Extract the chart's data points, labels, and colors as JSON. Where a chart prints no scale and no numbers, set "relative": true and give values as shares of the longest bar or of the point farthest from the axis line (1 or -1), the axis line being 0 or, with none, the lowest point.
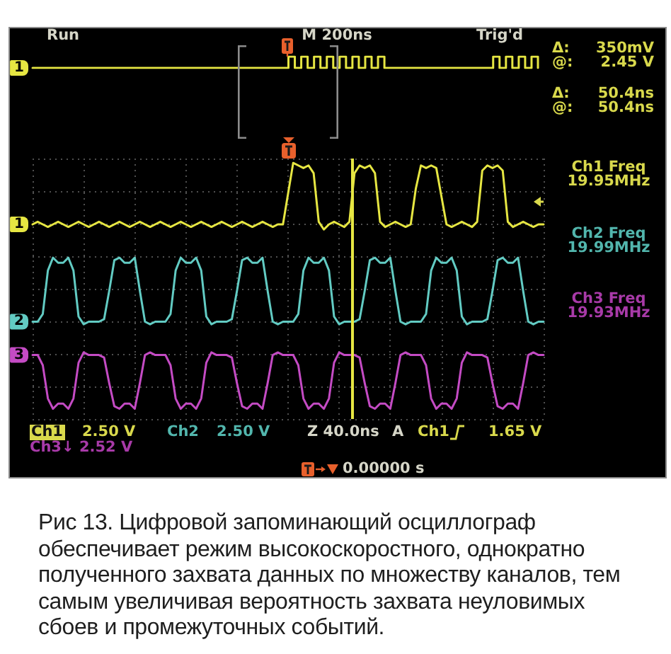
{
  "chart_data": [
    {
      "type": "step",
      "relative": true,
      "categories": [
        null,
        null,
        null,
        null,
        null,
        null,
        null,
        null,
        null,
        null,
        null,
        null,
        null,
        null,
        null,
        null,
        null,
        null,
        null,
        null,
        null,
        null,
        null,
        null,
        null,
        null,
        null,
        null,
        null,
        null,
        null,
        null,
        null,
        null,
        null,
        null,
        null,
        null,
        null,
        null,
        null,
        null,
        null,
        null,
        null,
        null,
        null,
        null,
        null,
        null,
        null,
        null,
        null,
        null,
        null,
        null,
        null,
        null,
        null,
        null,
        null,
        null,
        null,
        null,
        null,
        null,
        null,
        null,
        null,
        null,
        null,
        null,
        null,
        null,
        null,
        null,
        null,
        null,
        null,
        null
      ],
      "series": [
        {
          "name": "1",
          "color": "#e6e642",
          "values": [
            0,
            0,
            0,
            0,
            0,
            0,
            0,
            0,
            0,
            0,
            0,
            0,
            0,
            0,
            0,
            0,
            0,
            0,
            0,
            0,
            0,
            0,
            0,
            0,
            0,
            0,
            0,
            0,
            0,
            0,
            0,
            0,
            0,
            0,
            0,
            0,
            0,
            0,
            0,
            0,
            1,
            0,
            1,
            0,
            1,
            0,
            1,
            0,
            1,
            0,
            1,
            0,
            1,
            0,
            1,
            0,
            0,
            0,
            0,
            0,
            0,
            0,
            0,
            0,
            0,
            0,
            0,
            0,
            0,
            0,
            0,
            0,
            1,
            0,
            1,
            0,
            1,
            0,
            1,
            0
          ]
        }
      ],
      "marker": "none",
      "annotations": [
        "Run",
        "M 200ns",
        "Trig'd"
      ]
    },
    {
      "type": "line",
      "relative": true,
      "categories": [
        null,
        null,
        null,
        null,
        null,
        null,
        null,
        null,
        null,
        null,
        null,
        null,
        null,
        null,
        null,
        null,
        null,
        null,
        null,
        null,
        null,
        null,
        null,
        null,
        null,
        null,
        null,
        null,
        null,
        null,
        null,
        null,
        null,
        null,
        null,
        null,
        null,
        null,
        null,
        null,
        null,
        null,
        null,
        null,
        null,
        null,
        null,
        null,
        null,
        null,
        null,
        null,
        null,
        null,
        null,
        null,
        null,
        null,
        null,
        null,
        null,
        null,
        null,
        null,
        null,
        null,
        null,
        null,
        null,
        null,
        null,
        null,
        null,
        null,
        null,
        null,
        null,
        null,
        null,
        null,
        null,
        null,
        null,
        null,
        null,
        null,
        null,
        null,
        null,
        null,
        null,
        null,
        null,
        null,
        null,
        null,
        null,
        null,
        null,
        null,
        null
      ],
      "series": [
        {
          "name": "1",
          "color": "#e6e642",
          "values": [
            0.76,
            0.77,
            0.76,
            0.75,
            0.76,
            0.77,
            0.76,
            0.75,
            0.76,
            0.77,
            0.76,
            0.75,
            0.76,
            0.77,
            0.76,
            0.75,
            0.76,
            0.77,
            0.76,
            0.75,
            0.76,
            0.77,
            0.76,
            0.75,
            0.76,
            0.77,
            0.76,
            0.75,
            0.76,
            0.77,
            0.76,
            0.75,
            0.76,
            0.77,
            0.76,
            0.75,
            0.76,
            0.77,
            0.76,
            0.75,
            0.76,
            0.77,
            0.76,
            0.75,
            0.76,
            0.77,
            0.76,
            0.75,
            0.76,
            0.76,
            0.88,
            1,
            0.99,
            0.98,
            0.99,
            0.96,
            0.77,
            0.74,
            0.76,
            0.77,
            0.76,
            0.75,
            0.77,
            0.96,
            0.99,
            0.98,
            0.99,
            0.96,
            0.77,
            0.75,
            0.76,
            0.77,
            0.76,
            0.75,
            0.76,
            0.9,
            0.99,
            0.98,
            0.99,
            0.98,
            0.87,
            0.76,
            0.75,
            0.76,
            0.77,
            0.76,
            0.75,
            0.77,
            0.97,
            0.99,
            0.98,
            0.99,
            0.97,
            0.77,
            0.75,
            0.76,
            0.77,
            0.76,
            0.75,
            0.76,
            0.76
          ]
        },
        {
          "name": "2",
          "color": "#62cbc3",
          "values": [
            0.38,
            0.38,
            0.41,
            0.58,
            0.63,
            0.61,
            0.61,
            0.63,
            0.58,
            0.4,
            0.37,
            0.38,
            0.38,
            0.38,
            0.39,
            0.5,
            0.62,
            0.63,
            0.61,
            0.61,
            0.63,
            0.5,
            0.38,
            0.37,
            0.38,
            0.38,
            0.38,
            0.41,
            0.58,
            0.63,
            0.61,
            0.61,
            0.63,
            0.58,
            0.4,
            0.37,
            0.38,
            0.38,
            0.38,
            0.39,
            0.5,
            0.62,
            0.63,
            0.61,
            0.61,
            0.63,
            0.5,
            0.38,
            0.37,
            0.38,
            0.38,
            0.38,
            0.41,
            0.58,
            0.63,
            0.61,
            0.61,
            0.63,
            0.58,
            0.4,
            0.37,
            0.38,
            0.38,
            0.38,
            0.39,
            0.5,
            0.62,
            0.63,
            0.61,
            0.61,
            0.63,
            0.5,
            0.38,
            0.37,
            0.38,
            0.38,
            0.38,
            0.41,
            0.58,
            0.63,
            0.61,
            0.61,
            0.63,
            0.58,
            0.4,
            0.37,
            0.38,
            0.38,
            0.38,
            0.39,
            0.5,
            0.62,
            0.63,
            0.61,
            0.61,
            0.63,
            0.5,
            0.38,
            0.37,
            0.38,
            0.38
          ]
        },
        {
          "name": "3",
          "color": "#c44bc4",
          "values": [
            0.25,
            0.25,
            0.21,
            0.08,
            0.04,
            0.06,
            0.06,
            0.04,
            0.08,
            0.22,
            0.26,
            0.25,
            0.25,
            0.25,
            0.24,
            0.14,
            0.05,
            0.04,
            0.06,
            0.06,
            0.04,
            0.14,
            0.25,
            0.26,
            0.25,
            0.25,
            0.25,
            0.21,
            0.08,
            0.04,
            0.06,
            0.06,
            0.04,
            0.08,
            0.22,
            0.26,
            0.25,
            0.25,
            0.25,
            0.24,
            0.14,
            0.05,
            0.04,
            0.06,
            0.06,
            0.04,
            0.14,
            0.25,
            0.26,
            0.25,
            0.25,
            0.25,
            0.21,
            0.08,
            0.04,
            0.06,
            0.06,
            0.04,
            0.08,
            0.22,
            0.26,
            0.25,
            0.25,
            0.25,
            0.24,
            0.14,
            0.05,
            0.04,
            0.06,
            0.06,
            0.04,
            0.14,
            0.25,
            0.26,
            0.25,
            0.25,
            0.25,
            0.21,
            0.08,
            0.04,
            0.06,
            0.06,
            0.04,
            0.08,
            0.22,
            0.26,
            0.25,
            0.25,
            0.25,
            0.24,
            0.14,
            0.05,
            0.04,
            0.06,
            0.06,
            0.04,
            0.14,
            0.25,
            0.26,
            0.25,
            0.25
          ]
        }
      ],
      "marker": "none",
      "grid": true,
      "annotations": [
        "Δ:",
        "350mV",
        "@:",
        "2.45 V",
        "Δ:",
        "50.4ns",
        "@:",
        "50.4ns",
        "Ch1 Freq",
        "19.95MHz",
        "Ch2 Freq",
        "19.99MHz",
        "Ch3 Freq",
        "19.93MHz",
        "Ch1",
        "2.50 V",
        "Ch2",
        "2.50 V",
        "Z 40.0ns",
        "A",
        "Ch1",
        "1.65 V",
        "Ch3↓ 2.52 V",
        "0.00000 s",
        "Рис 13. Цифровой запоминающий осциллограф обеспечивает режим высокоскоростного, однократно полученного захвата данных по множеству каналов, тем самым увеличивая вероятность захвата неуловимых сбоев и промежуточных событий."
      ]
    }
  ]
}
